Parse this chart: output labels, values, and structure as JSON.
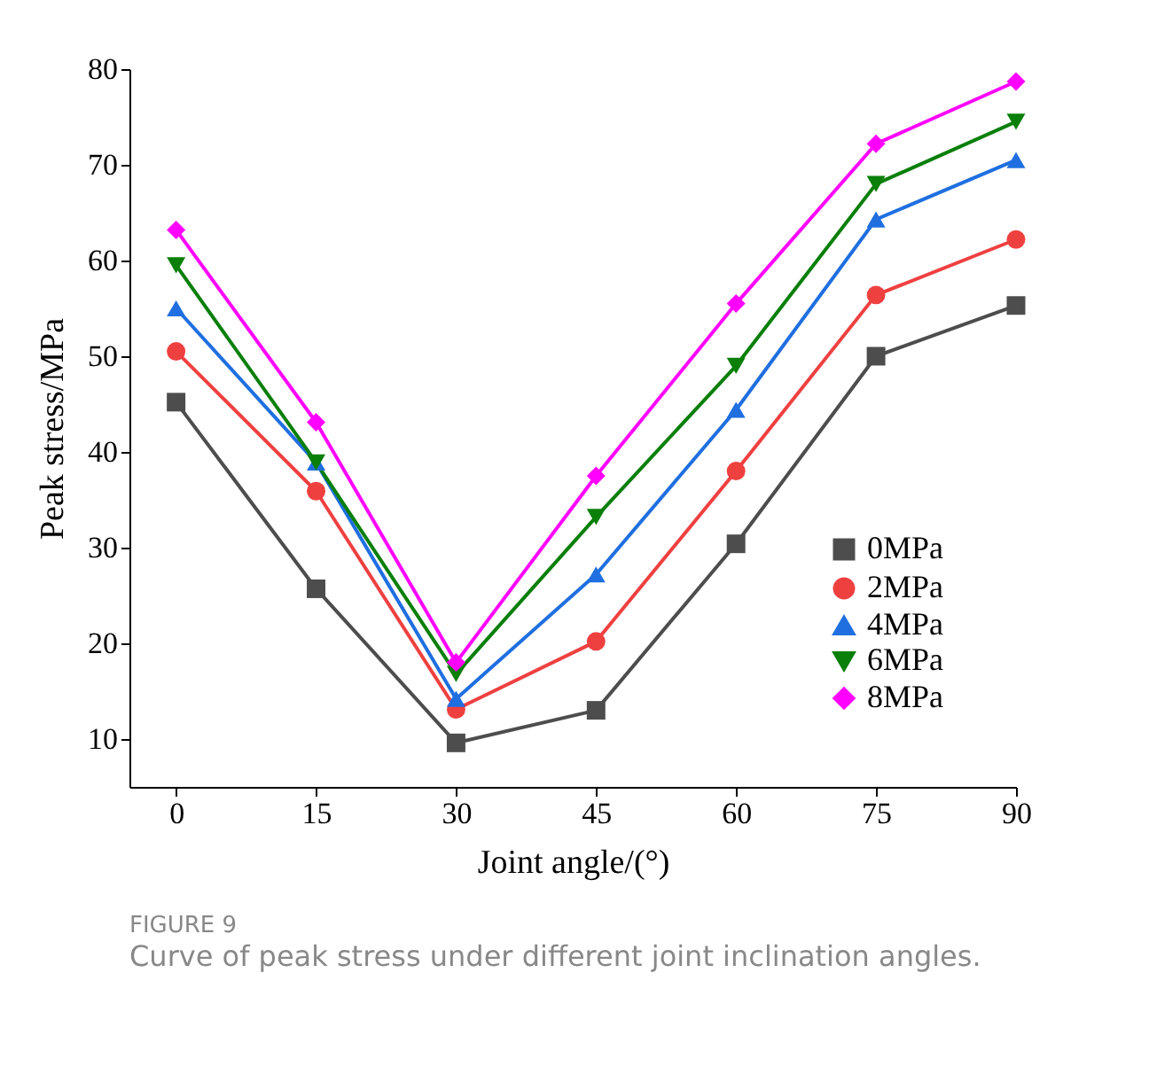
{
  "chart_data": {
    "type": "line",
    "xlabel": "Joint angle/(°)",
    "ylabel": "Peak stress/MPa",
    "x": [
      0,
      15,
      30,
      45,
      60,
      75,
      90
    ],
    "xlim": [
      -5,
      90
    ],
    "xticks": [
      0,
      15,
      30,
      45,
      60,
      75,
      90
    ],
    "ylim": [
      5,
      80
    ],
    "yticks": [
      10,
      20,
      30,
      40,
      50,
      60,
      70,
      80
    ],
    "grid": false,
    "legend": "bottom right",
    "line_style": "solid",
    "series": [
      {
        "name": "0MPa",
        "color": "#4d4d4d",
        "marker": "square",
        "values": [
          45.2,
          25.7,
          9.6,
          13.0,
          30.4,
          50.0,
          55.3
        ]
      },
      {
        "name": "2MPa",
        "color": "#ef4040",
        "marker": "circle",
        "values": [
          50.5,
          35.9,
          13.1,
          20.2,
          38.0,
          56.4,
          62.2
        ]
      },
      {
        "name": "4MPa",
        "color": "#1f6fe0",
        "marker": "triangle",
        "values": [
          55.0,
          38.9,
          14.2,
          27.2,
          44.4,
          64.3,
          70.5
        ]
      },
      {
        "name": "6MPa",
        "color": "#0a7f0a",
        "marker": "triangle_down",
        "values": [
          59.5,
          38.9,
          16.8,
          33.2,
          49.0,
          68.0,
          74.5
        ]
      },
      {
        "name": "8MPa",
        "color": "#ff00ff",
        "marker": "diamond",
        "values": [
          63.2,
          43.1,
          18.0,
          37.5,
          55.5,
          72.2,
          78.7
        ]
      }
    ],
    "annotations": [
      "FIGURE 9",
      "Curve of peak stress under different joint inclination angles."
    ]
  }
}
